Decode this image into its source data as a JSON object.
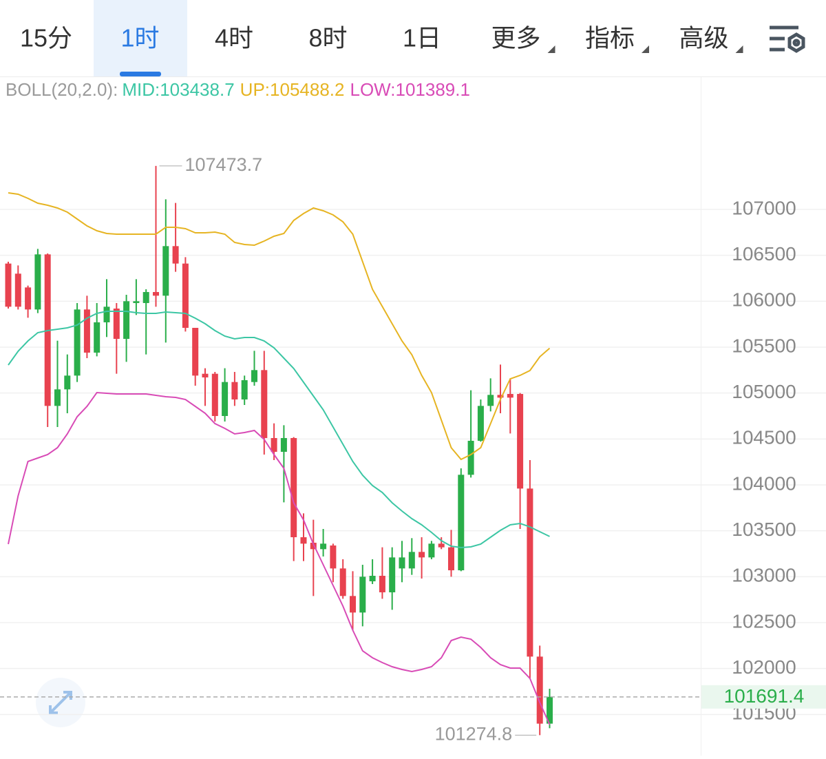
{
  "tabs": {
    "items": [
      "15分",
      "1时",
      "4时",
      "8时",
      "1日",
      "更多",
      "指标",
      "高级"
    ],
    "active": 1,
    "dropdown": [
      5,
      6,
      7
    ]
  },
  "chart_data": {
    "type": "candlestick",
    "indicator": "BOLL(20,2.0):",
    "up_color": "#2aae4a",
    "down_color": "#e8424f",
    "ylim": [
      101082.5,
      108440
    ],
    "yticks": [
      101500,
      102000,
      102500,
      103000,
      103500,
      104000,
      104500,
      105000,
      105500,
      106000,
      106500,
      107000
    ],
    "grid": true,
    "open": [
      106410,
      106300,
      106150,
      105910,
      106510,
      104860,
      105040,
      105190,
      105910,
      105440,
      105770,
      105920,
      105590,
      105980,
      105980,
      106100,
      106060,
      106600,
      106410,
      105710,
      105210,
      105210,
      104750,
      105120,
      104930,
      105120,
      105250,
      104510,
      104360,
      104510,
      103430,
      103370,
      103300,
      103340,
      103090,
      102790,
      102610,
      102950,
      103010,
      102830,
      103090,
      103090,
      103270,
      103210,
      103360,
      103320,
      103070,
      104110,
      104480,
      104860,
      104980,
      104990,
      104990,
      103960,
      102130,
      101400
    ],
    "high": [
      106430,
      106390,
      106170,
      106570,
      106520,
      105570,
      105420,
      105980,
      106060,
      105980,
      106240,
      105980,
      106070,
      106240,
      106130,
      107473.7,
      107110,
      107070,
      106480,
      105710,
      105270,
      105230,
      105270,
      105230,
      105190,
      105460,
      105460,
      104670,
      104650,
      104520,
      103690,
      103620,
      103520,
      103360,
      103190,
      103060,
      103130,
      103190,
      103320,
      103320,
      103390,
      103420,
      103430,
      103390,
      103430,
      103510,
      104180,
      105030,
      104930,
      105160,
      105310,
      105160,
      105000,
      104270,
      102250,
      101780
    ],
    "low": [
      105920,
      105910,
      105820,
      105870,
      104630,
      104630,
      104780,
      105120,
      105380,
      105400,
      105610,
      105210,
      105340,
      105850,
      105420,
      105940,
      105550,
      106320,
      105670,
      105080,
      104860,
      104690,
      104690,
      104860,
      104870,
      105080,
      104330,
      104270,
      103810,
      103170,
      103170,
      102790,
      103220,
      102940,
      102760,
      102420,
      102460,
      102920,
      102760,
      102640,
      102940,
      103020,
      102980,
      103190,
      103300,
      103000,
      103060,
      104080,
      104470,
      104800,
      104780,
      104560,
      103520,
      101890,
      101274.8,
      101350
    ],
    "close": [
      105940,
      105940,
      105910,
      106510,
      104860,
      105040,
      105190,
      105910,
      105440,
      105770,
      105940,
      105590,
      106000,
      106000,
      106100,
      106060,
      106600,
      106410,
      105710,
      105190,
      105170,
      104750,
      105120,
      104930,
      105140,
      105250,
      104510,
      104360,
      104510,
      103430,
      103360,
      103300,
      103360,
      103090,
      102790,
      102610,
      103000,
      103010,
      102830,
      103210,
      103210,
      103270,
      103210,
      103360,
      103320,
      103070,
      104110,
      104480,
      104860,
      104980,
      104950,
      104950,
      103960,
      102130,
      101400,
      101691.4
    ],
    "series": [
      {
        "name": "MID",
        "color": "#3cc6a4",
        "values": [
          105305,
          105455,
          105567.5,
          105657.5,
          105680,
          105695,
          105710,
          105740,
          105815,
          105867.5,
          105890,
          105890,
          105890,
          105875,
          105867.5,
          105867.5,
          105882.5,
          105875,
          105867.5,
          105815,
          105755,
          105680,
          105620,
          105590,
          105605,
          105605,
          105567.5,
          105492.5,
          105380,
          105267.5,
          105117.5,
          104967.5,
          104817.5,
          104630,
          104442.5,
          104255,
          104105,
          103992.5,
          103917.5,
          103805,
          103715,
          103632.5,
          103565,
          103482.5,
          103392.5,
          103332.5,
          103317.5,
          103325,
          103355,
          103430,
          103505,
          103565,
          103580,
          103542.5,
          103490,
          103438.7
        ]
      },
      {
        "name": "UP",
        "color": "#e6b422",
        "values": [
          107180,
          107165,
          107120,
          107067.5,
          107045,
          107015,
          106970,
          106895,
          106820,
          106767.5,
          106737.5,
          106730,
          106730,
          106730,
          106730,
          106730,
          106805,
          106805,
          106790,
          106745,
          106745,
          106752.5,
          106730,
          106640,
          106617.5,
          106610,
          106655,
          106707.5,
          106737.5,
          106880,
          106955,
          107015,
          106985,
          106940,
          106865,
          106730,
          106430,
          106130,
          105942.5,
          105755,
          105567.5,
          105417.5,
          105192.5,
          105005,
          104705,
          104405,
          104277.5,
          104330,
          104405,
          104667.5,
          104930,
          105155,
          105192.5,
          105245,
          105395,
          105488.2
        ]
      },
      {
        "name": "LOW",
        "color": "#d84bb6",
        "values": [
          103355,
          103880,
          104255,
          104292.5,
          104330,
          104405,
          104555,
          104742.5,
          104855,
          105005,
          104997.5,
          104990,
          104990,
          104990,
          104990,
          104975,
          104960,
          104952.5,
          104930,
          104855,
          104780,
          104667.5,
          104615,
          104555,
          104570,
          104592.5,
          104495,
          104330,
          104180,
          103805,
          103617.5,
          103355,
          103130,
          102905,
          102680,
          102417.5,
          102192.5,
          102117.5,
          102065,
          102020,
          101990,
          101967.5,
          101990,
          102020,
          102117.5,
          102305,
          102342.5,
          102320,
          102230,
          102117.5,
          102042.5,
          102005,
          102005,
          101892.5,
          101630,
          101389.1
        ]
      }
    ]
  }
}
